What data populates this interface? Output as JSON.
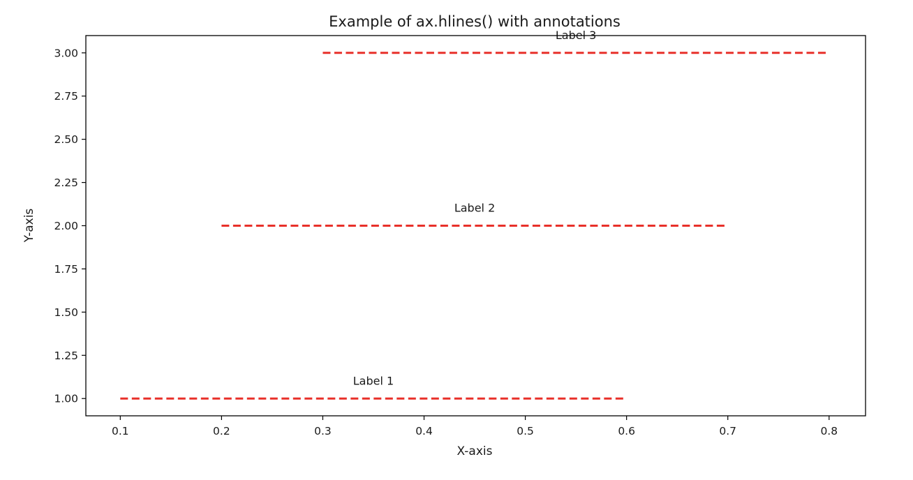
{
  "chart_data": {
    "type": "line",
    "title": "Example of ax.hlines() with annotations",
    "xlabel": "X-axis",
    "ylabel": "Y-axis",
    "xlim": [
      0.066,
      0.836
    ],
    "ylim": [
      0.9,
      3.1
    ],
    "xticks": [
      0.1,
      0.2,
      0.3,
      0.4,
      0.5,
      0.6,
      0.7,
      0.8
    ],
    "xtick_labels": [
      "0.1",
      "0.2",
      "0.3",
      "0.4",
      "0.5",
      "0.6",
      "0.7",
      "0.8"
    ],
    "yticks": [
      1.0,
      1.25,
      1.5,
      1.75,
      2.0,
      2.25,
      2.5,
      2.75,
      3.0
    ],
    "ytick_labels": [
      "1.00",
      "1.25",
      "1.50",
      "1.75",
      "2.00",
      "2.25",
      "2.50",
      "2.75",
      "3.00"
    ],
    "grid": false,
    "line_style": "dashed",
    "line_color": "#e8302a",
    "hlines": [
      {
        "y": 1.0,
        "xmin": 0.1,
        "xmax": 0.6
      },
      {
        "y": 2.0,
        "xmin": 0.2,
        "xmax": 0.7
      },
      {
        "y": 3.0,
        "xmin": 0.3,
        "xmax": 0.8
      }
    ],
    "annotations": [
      {
        "text": "Label 1",
        "x": 0.35,
        "y": 1.08
      },
      {
        "text": "Label 2",
        "x": 0.45,
        "y": 2.08
      },
      {
        "text": "Label 3",
        "x": 0.55,
        "y": 3.08
      }
    ]
  }
}
